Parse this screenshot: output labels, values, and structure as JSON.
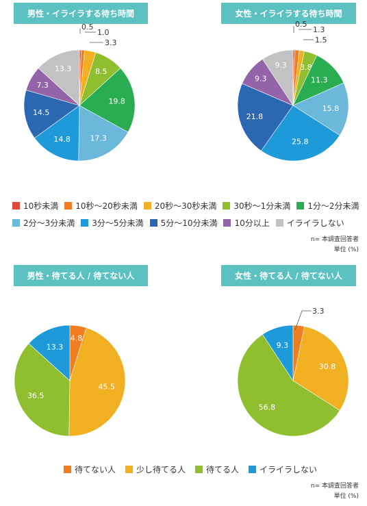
{
  "colors": {
    "title_bg": "#5bc1c1",
    "red": "#e04a3b",
    "orange": "#f07d1f",
    "yellow": "#f0b022",
    "yellowgreen": "#8fbe2e",
    "green": "#2aac52",
    "lightblue": "#6cb8da",
    "blue": "#1f9ad8",
    "darkblue": "#2c67b2",
    "purple": "#9365a8",
    "gray": "#c2c2c2"
  },
  "sections": {
    "male_wait_title": "男性・イライラする待ち時間",
    "female_wait_title": "女性・イライラする待ち時間",
    "male_tolerance_title": "男性・待てる人 / 待てない人",
    "female_tolerance_title": "女性・待てる人 / 待てない人"
  },
  "legend_wait": [
    {
      "label": "10秒未満",
      "color": "#e04a3b"
    },
    {
      "label": "10秒〜20秒未満",
      "color": "#f07d1f"
    },
    {
      "label": "20秒〜30秒未満",
      "color": "#f0b022"
    },
    {
      "label": "30秒〜1分未満",
      "color": "#8fbe2e"
    },
    {
      "label": "1分〜2分未満",
      "color": "#2aac52"
    },
    {
      "label": "2分〜3分未満",
      "color": "#6cb8da"
    },
    {
      "label": "3分〜5分未満",
      "color": "#1f9ad8"
    },
    {
      "label": "5分〜10分未満",
      "color": "#2c67b2"
    },
    {
      "label": "10分以上",
      "color": "#9365a8"
    },
    {
      "label": "イライラしない",
      "color": "#c2c2c2"
    }
  ],
  "legend_tolerance": [
    {
      "label": "待てない人",
      "color": "#f07d1f"
    },
    {
      "label": "少し待てる人",
      "color": "#f0b022"
    },
    {
      "label": "待てる人",
      "color": "#8fbe2e"
    },
    {
      "label": "イライラしない",
      "color": "#1f9ad8"
    }
  ],
  "notes": {
    "n_line": "n= 本調査回答者",
    "unit_line": "単位 (%)"
  },
  "chart_data": [
    {
      "type": "pie",
      "title": "男性・イライラする待ち時間",
      "categories": [
        "10秒未満",
        "10秒〜20秒未満",
        "20秒〜30秒未満",
        "30秒〜1分未満",
        "1分〜2分未満",
        "2分〜3分未満",
        "3分〜5分未満",
        "5分〜10分未満",
        "10分以上",
        "イライラしない"
      ],
      "values": [
        0.5,
        1.0,
        3.3,
        8.5,
        19.8,
        17.3,
        14.8,
        14.5,
        7.3,
        13.3
      ],
      "labels": [
        "0.5",
        "1.0",
        "3.3",
        "8.5",
        "19.8",
        "17.3",
        "14.8",
        "14.5",
        "7.3",
        "13.3"
      ],
      "colors": [
        "#e04a3b",
        "#f07d1f",
        "#f0b022",
        "#8fbe2e",
        "#2aac52",
        "#6cb8da",
        "#1f9ad8",
        "#2c67b2",
        "#9365a8",
        "#c2c2c2"
      ],
      "callouts": [
        0,
        1,
        2
      ]
    },
    {
      "type": "pie",
      "title": "女性・イライラする待ち時間",
      "categories": [
        "10秒未満",
        "10秒〜20秒未満",
        "20秒〜30秒未満",
        "30秒〜1分未満",
        "1分〜2分未満",
        "2分〜3分未満",
        "3分〜5分未満",
        "5分〜10分未満",
        "10分以上",
        "イライラしない"
      ],
      "values": [
        0.5,
        1.3,
        1.5,
        3.8,
        11.3,
        15.8,
        25.8,
        21.8,
        9.3,
        9.3
      ],
      "labels": [
        "0.5",
        "1.3",
        "1.5",
        "3.8",
        "11.3",
        "15.8",
        "25.8",
        "21.8",
        "9.3",
        "9.3"
      ],
      "colors": [
        "#e04a3b",
        "#f07d1f",
        "#f0b022",
        "#8fbe2e",
        "#2aac52",
        "#6cb8da",
        "#1f9ad8",
        "#2c67b2",
        "#9365a8",
        "#c2c2c2"
      ],
      "callouts": [
        0,
        1,
        2
      ]
    },
    {
      "type": "pie",
      "title": "男性・待てる人 / 待てない人",
      "categories": [
        "待てない人",
        "少し待てる人",
        "待てる人",
        "イライラしない"
      ],
      "values": [
        4.8,
        45.5,
        36.5,
        13.3
      ],
      "labels": [
        "4.8",
        "45.5",
        "36.5",
        "13.3"
      ],
      "colors": [
        "#f07d1f",
        "#f0b022",
        "#8fbe2e",
        "#1f9ad8"
      ],
      "callouts": []
    },
    {
      "type": "pie",
      "title": "女性・待てる人 / 待てない人",
      "categories": [
        "待てない人",
        "少し待てる人",
        "待てる人",
        "イライラしない"
      ],
      "values": [
        3.3,
        30.8,
        56.8,
        9.3
      ],
      "labels": [
        "3.3",
        "30.8",
        "56.8",
        "9.3"
      ],
      "colors": [
        "#f07d1f",
        "#f0b022",
        "#8fbe2e",
        "#1f9ad8"
      ],
      "callouts": [
        0
      ]
    }
  ]
}
